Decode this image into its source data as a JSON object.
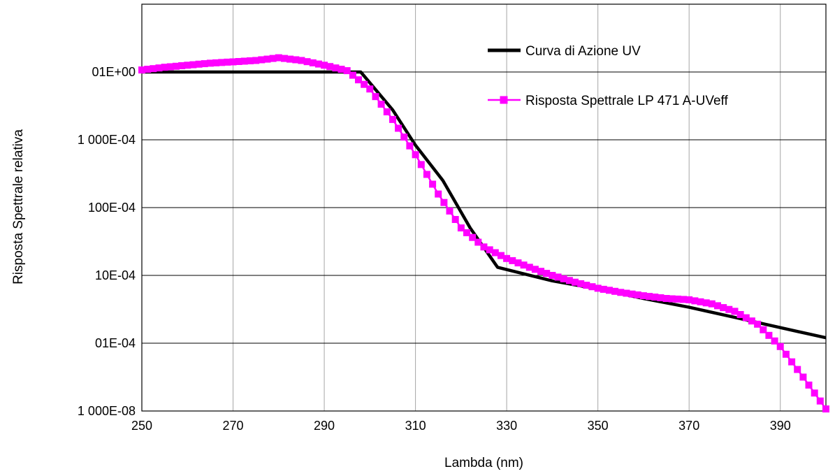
{
  "chart_data": {
    "type": "line",
    "title": "",
    "xlabel": "Lambda (nm)",
    "ylabel": "Risposta Spettrale relativa",
    "xlim": [
      250,
      400
    ],
    "ylim": [
      -5,
      0
    ],
    "y_scale": "log",
    "grid": true,
    "legend_position": "top-right",
    "x_ticks": [
      "250",
      "270",
      "290",
      "310",
      "330",
      "350",
      "370",
      "390"
    ],
    "y_ticks": [
      "01E+00",
      "1 000E-04",
      "100E-04",
      "10E-04",
      "01E-04",
      "1 000E-08"
    ],
    "series": [
      {
        "name": "Curva di Azione UV",
        "color": "#000000",
        "marker": "none",
        "x": [
          250,
          298,
          305,
          310,
          316,
          322,
          328,
          340,
          350,
          360,
          370,
          380,
          390,
          400
        ],
        "y": [
          0.0,
          0.0,
          -0.56,
          -1.08,
          -1.6,
          -2.3,
          -2.88,
          -3.08,
          -3.2,
          -3.34,
          -3.47,
          -3.62,
          -3.77,
          -3.92
        ]
      },
      {
        "name": "Risposta Spettrale LP 471 A-UVeff",
        "color": "#ff00ff",
        "marker": "square",
        "x": [
          250,
          255,
          260,
          265,
          270,
          275,
          280,
          285,
          290,
          295,
          300,
          305,
          310,
          315,
          320,
          325,
          330,
          335,
          340,
          345,
          350,
          355,
          360,
          365,
          370,
          375,
          380,
          385,
          390,
          395,
          400
        ],
        "y": [
          0.03,
          0.07,
          0.1,
          0.13,
          0.15,
          0.17,
          0.21,
          0.17,
          0.1,
          0.02,
          -0.25,
          -0.7,
          -1.22,
          -1.8,
          -2.3,
          -2.58,
          -2.75,
          -2.88,
          -3.0,
          -3.1,
          -3.19,
          -3.25,
          -3.3,
          -3.34,
          -3.36,
          -3.42,
          -3.53,
          -3.72,
          -4.05,
          -4.5,
          -4.97
        ]
      }
    ]
  }
}
